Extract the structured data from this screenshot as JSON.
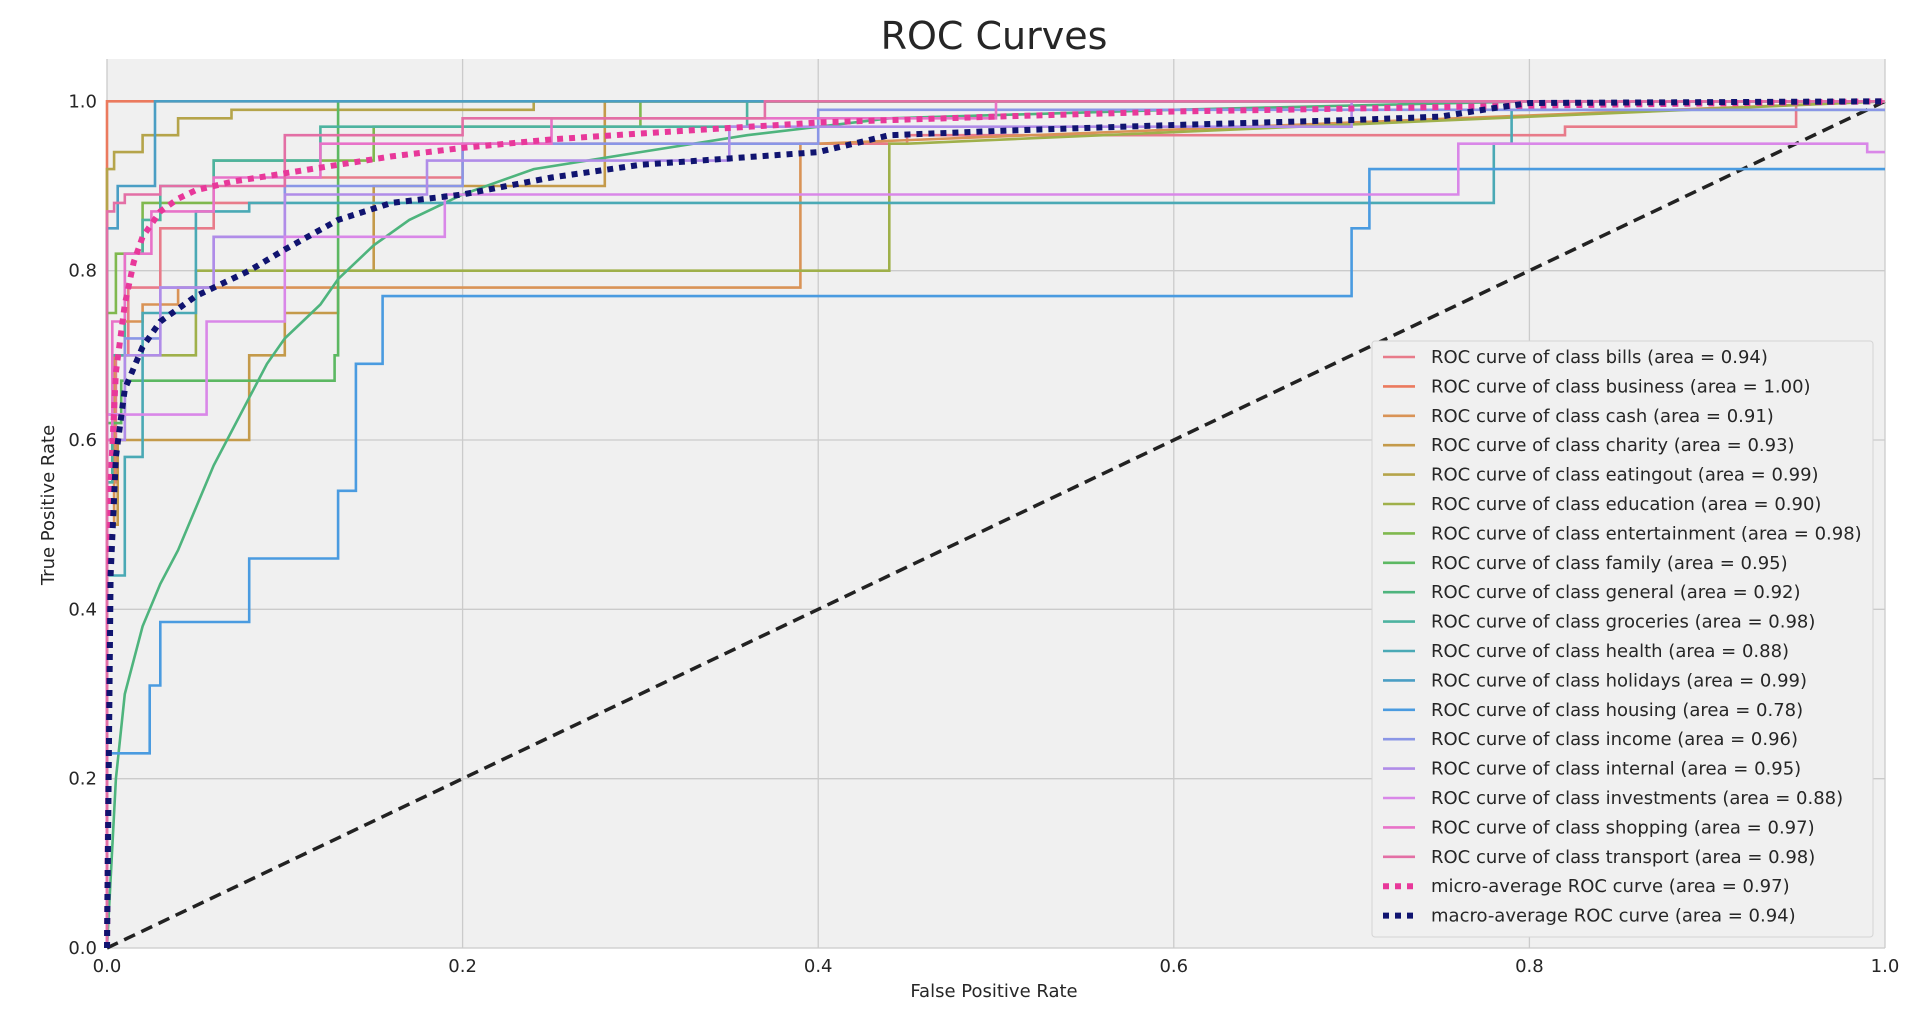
{
  "chart_data": {
    "type": "line",
    "title": "ROC Curves",
    "xlabel": "False Positive Rate",
    "ylabel": "True Positive Rate",
    "xlim": [
      0,
      1
    ],
    "ylim": [
      0,
      1.05
    ],
    "xticks": [
      "0.0",
      "0.2",
      "0.4",
      "0.6",
      "0.8",
      "1.0"
    ],
    "yticks": [
      "0.0",
      "0.2",
      "0.4",
      "0.6",
      "0.8",
      "1.0"
    ],
    "grid": true,
    "legend_position": "center-right",
    "series": [
      {
        "name": "ROC curve of class bills (area = 0.94)",
        "color": "#e87b8a",
        "style": "solid",
        "x": [
          0,
          0,
          0.005,
          0.005,
          0.012,
          0.012,
          0.03,
          0.03,
          0.06,
          0.06,
          0.1,
          0.1,
          0.2,
          0.2,
          0.45,
          0.45,
          0.82,
          0.82,
          0.95,
          0.95,
          1
        ],
        "y": [
          0,
          0.55,
          0.55,
          0.7,
          0.7,
          0.78,
          0.78,
          0.85,
          0.85,
          0.88,
          0.88,
          0.91,
          0.91,
          0.95,
          0.95,
          0.96,
          0.96,
          0.97,
          0.97,
          1,
          1
        ]
      },
      {
        "name": "ROC curve of class business (area = 1.00)",
        "color": "#eb7a5e",
        "style": "solid",
        "x": [
          0,
          0,
          0.025,
          1
        ],
        "y": [
          0,
          1,
          1,
          1
        ]
      },
      {
        "name": "ROC curve of class cash (area = 0.91)",
        "color": "#d99356",
        "style": "solid",
        "x": [
          0,
          0,
          0.004,
          0.004,
          0.01,
          0.01,
          0.02,
          0.02,
          0.04,
          0.04,
          0.39,
          0.39,
          0.4,
          1
        ],
        "y": [
          0,
          0.5,
          0.5,
          0.7,
          0.7,
          0.74,
          0.74,
          0.76,
          0.76,
          0.78,
          0.78,
          0.95,
          0.95,
          1
        ]
      },
      {
        "name": "ROC curve of class charity (area = 0.93)",
        "color": "#c49a4a",
        "style": "solid",
        "x": [
          0,
          0,
          0.006,
          0.006,
          0.058,
          0.058,
          0.08,
          0.08,
          0.1,
          0.1,
          0.13,
          0.13,
          0.15,
          0.15,
          0.28,
          0.28,
          1
        ],
        "y": [
          0,
          0.5,
          0.5,
          0.6,
          0.6,
          0.6,
          0.6,
          0.7,
          0.7,
          0.75,
          0.75,
          0.8,
          0.8,
          0.9,
          0.9,
          1,
          1
        ]
      },
      {
        "name": "ROC curve of class eatingout (area = 0.99)",
        "color": "#b5a44a",
        "style": "solid",
        "x": [
          0,
          0,
          0.004,
          0.004,
          0.02,
          0.02,
          0.04,
          0.04,
          0.07,
          0.07,
          0.24,
          0.24,
          1
        ],
        "y": [
          0,
          0.92,
          0.92,
          0.94,
          0.94,
          0.96,
          0.96,
          0.98,
          0.98,
          0.99,
          0.99,
          1,
          1
        ]
      },
      {
        "name": "ROC curve of class education (area = 0.90)",
        "color": "#9fb04a",
        "style": "solid",
        "x": [
          0,
          0,
          0.01,
          0.01,
          0.05,
          0.05,
          0.1,
          0.1,
          0.44,
          0.44,
          0.45,
          1
        ],
        "y": [
          0,
          0.6,
          0.6,
          0.7,
          0.7,
          0.8,
          0.8,
          0.8,
          0.8,
          0.95,
          0.95,
          1
        ]
      },
      {
        "name": "ROC curve of class entertainment (area = 0.98)",
        "color": "#7fb84e",
        "style": "solid",
        "x": [
          0,
          0,
          0.005,
          0.005,
          0.02,
          0.02,
          0.06,
          0.06,
          0.15,
          0.15,
          0.3,
          0.3,
          1
        ],
        "y": [
          0,
          0.75,
          0.75,
          0.82,
          0.82,
          0.88,
          0.88,
          0.93,
          0.93,
          0.97,
          0.97,
          1,
          1
        ]
      },
      {
        "name": "ROC curve of class family (area = 0.95)",
        "color": "#5cb862",
        "style": "solid",
        "x": [
          0,
          0,
          0.008,
          0.008,
          0.03,
          0.03,
          0.128,
          0.128,
          0.13,
          0.13,
          0.32,
          0.32,
          1
        ],
        "y": [
          0,
          0.62,
          0.62,
          0.67,
          0.67,
          0.67,
          0.67,
          0.7,
          0.7,
          1,
          1,
          1,
          1
        ]
      },
      {
        "name": "ROC curve of class general (area = 0.92)",
        "color": "#4eb47d",
        "style": "solid",
        "x": [
          0,
          0.005,
          0.01,
          0.02,
          0.03,
          0.04,
          0.05,
          0.06,
          0.07,
          0.08,
          0.09,
          0.1,
          0.11,
          0.12,
          0.13,
          0.15,
          0.17,
          0.2,
          0.24,
          0.3,
          0.36,
          0.44,
          0.6,
          0.8,
          1
        ],
        "y": [
          0,
          0.2,
          0.3,
          0.38,
          0.43,
          0.47,
          0.52,
          0.57,
          0.61,
          0.65,
          0.69,
          0.72,
          0.74,
          0.76,
          0.79,
          0.83,
          0.86,
          0.89,
          0.92,
          0.94,
          0.96,
          0.98,
          0.99,
          1,
          1
        ]
      },
      {
        "name": "ROC curve of class groceries (area = 0.98)",
        "color": "#4db3a0",
        "style": "solid",
        "x": [
          0,
          0,
          0.003,
          0.003,
          0.01,
          0.01,
          0.02,
          0.02,
          0.03,
          0.03,
          0.06,
          0.06,
          0.12,
          0.12,
          0.36,
          0.36,
          1
        ],
        "y": [
          0,
          0.55,
          0.55,
          0.7,
          0.7,
          0.82,
          0.82,
          0.86,
          0.86,
          0.9,
          0.9,
          0.93,
          0.93,
          0.97,
          0.97,
          1,
          1
        ]
      },
      {
        "name": "ROC curve of class health (area = 0.88)",
        "color": "#4aa9b5",
        "style": "solid",
        "x": [
          0,
          0,
          0.01,
          0.01,
          0.02,
          0.02,
          0.05,
          0.05,
          0.08,
          0.08,
          0.78,
          0.78,
          0.79,
          0.79,
          1
        ],
        "y": [
          0,
          0.44,
          0.44,
          0.58,
          0.58,
          0.75,
          0.75,
          0.87,
          0.87,
          0.88,
          0.88,
          0.95,
          0.95,
          0.99,
          0.99
        ]
      },
      {
        "name": "ROC curve of class holidays (area = 0.99)",
        "color": "#4a9ec4",
        "style": "solid",
        "x": [
          0,
          0,
          0.006,
          0.006,
          0.027,
          0.027,
          0.3,
          0.3,
          1
        ],
        "y": [
          0,
          0.85,
          0.85,
          0.9,
          0.9,
          1,
          1,
          1,
          1
        ]
      },
      {
        "name": "ROC curve of class housing (area = 0.78)",
        "color": "#4a9be0",
        "style": "solid",
        "x": [
          0,
          0,
          0.024,
          0.024,
          0.03,
          0.03,
          0.08,
          0.08,
          0.13,
          0.13,
          0.14,
          0.14,
          0.155,
          0.155,
          0.7,
          0.7,
          0.71,
          0.71,
          1
        ],
        "y": [
          0,
          0.23,
          0.23,
          0.31,
          0.31,
          0.385,
          0.385,
          0.46,
          0.46,
          0.54,
          0.54,
          0.69,
          0.69,
          0.77,
          0.77,
          0.85,
          0.85,
          0.92,
          0.92
        ]
      },
      {
        "name": "ROC curve of class income (area = 0.96)",
        "color": "#8a96e6",
        "style": "solid",
        "x": [
          0,
          0,
          0.01,
          0.01,
          0.03,
          0.03,
          0.06,
          0.06,
          0.1,
          0.1,
          0.2,
          0.2,
          0.4,
          0.4,
          1
        ],
        "y": [
          0,
          0.63,
          0.63,
          0.72,
          0.72,
          0.78,
          0.78,
          0.84,
          0.84,
          0.9,
          0.9,
          0.95,
          0.95,
          0.99,
          0.99
        ]
      },
      {
        "name": "ROC curve of class internal (area = 0.95)",
        "color": "#b08ce8",
        "style": "solid",
        "x": [
          0,
          0,
          0.01,
          0.01,
          0.03,
          0.03,
          0.06,
          0.06,
          0.1,
          0.1,
          0.18,
          0.18,
          0.35,
          0.35,
          0.7,
          0.7,
          1
        ],
        "y": [
          0,
          0.6,
          0.6,
          0.7,
          0.7,
          0.78,
          0.78,
          0.84,
          0.84,
          0.89,
          0.89,
          0.93,
          0.93,
          0.97,
          0.97,
          1,
          1
        ]
      },
      {
        "name": "ROC curve of class investments (area = 0.88)",
        "color": "#d987e8",
        "style": "solid",
        "x": [
          0,
          0,
          0.004,
          0.004,
          0.056,
          0.056,
          0.1,
          0.1,
          0.12,
          0.12,
          0.19,
          0.19,
          0.745,
          0.745,
          0.76,
          0.76,
          0.99,
          0.99,
          1
        ],
        "y": [
          0,
          0.63,
          0.63,
          0.63,
          0.63,
          0.74,
          0.74,
          0.84,
          0.84,
          0.84,
          0.84,
          0.89,
          0.89,
          0.89,
          0.89,
          0.95,
          0.95,
          0.94,
          0.94
        ]
      },
      {
        "name": "ROC curve of class shopping (area = 0.97)",
        "color": "#e872c8",
        "style": "solid",
        "x": [
          0,
          0,
          0.003,
          0.003,
          0.01,
          0.01,
          0.025,
          0.025,
          0.06,
          0.06,
          0.12,
          0.12,
          0.25,
          0.25,
          0.5,
          0.5,
          1
        ],
        "y": [
          0,
          0.6,
          0.6,
          0.74,
          0.74,
          0.82,
          0.82,
          0.87,
          0.87,
          0.91,
          0.91,
          0.95,
          0.95,
          0.98,
          0.98,
          1,
          1
        ]
      },
      {
        "name": "ROC curve of class transport (area = 0.98)",
        "color": "#e36fa5",
        "style": "solid",
        "x": [
          0,
          0,
          0.004,
          0.004,
          0.01,
          0.01,
          0.03,
          0.03,
          0.1,
          0.1,
          0.2,
          0.2,
          0.37,
          0.37,
          1
        ],
        "y": [
          0,
          0.87,
          0.87,
          0.88,
          0.88,
          0.89,
          0.89,
          0.9,
          0.9,
          0.96,
          0.96,
          0.98,
          0.98,
          1,
          1
        ]
      },
      {
        "name": "micro-average ROC curve (area = 0.97)",
        "color": "#e8389a",
        "style": "dotted",
        "x": [
          0,
          0.002,
          0.005,
          0.01,
          0.015,
          0.02,
          0.03,
          0.04,
          0.05,
          0.07,
          0.1,
          0.13,
          0.16,
          0.2,
          0.25,
          0.3,
          0.4,
          0.5,
          0.6,
          0.8,
          1
        ],
        "y": [
          0,
          0.55,
          0.68,
          0.76,
          0.81,
          0.84,
          0.87,
          0.885,
          0.895,
          0.905,
          0.915,
          0.925,
          0.935,
          0.945,
          0.955,
          0.962,
          0.975,
          0.982,
          0.988,
          0.995,
          1
        ]
      },
      {
        "name": "macro-average ROC curve (area = 0.94)",
        "color": "#101470",
        "style": "dotted",
        "x": [
          0,
          0.002,
          0.005,
          0.01,
          0.02,
          0.03,
          0.05,
          0.08,
          0.1,
          0.13,
          0.16,
          0.2,
          0.25,
          0.3,
          0.4,
          0.44,
          0.5,
          0.6,
          0.7,
          0.75,
          0.78,
          0.8,
          1
        ],
        "y": [
          0,
          0.44,
          0.58,
          0.66,
          0.71,
          0.74,
          0.77,
          0.8,
          0.825,
          0.86,
          0.88,
          0.89,
          0.91,
          0.925,
          0.94,
          0.96,
          0.965,
          0.972,
          0.978,
          0.982,
          0.992,
          0.998,
          1
        ]
      }
    ],
    "reference_line": {
      "x": [
        0,
        1
      ],
      "y": [
        0,
        1
      ],
      "color": "#222222",
      "style": "dashed"
    }
  }
}
